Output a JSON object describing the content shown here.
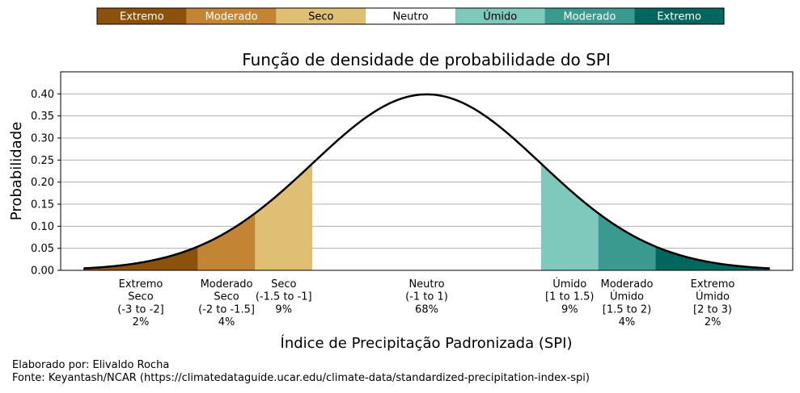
{
  "legend_bar": {
    "items": [
      {
        "label": "Extremo",
        "color": "#8c510a",
        "text_color": "#ffffff"
      },
      {
        "label": "Moderado",
        "color": "#c38533",
        "text_color": "#ffffff"
      },
      {
        "label": "Seco",
        "color": "#dfbf74",
        "text_color": "#000000"
      },
      {
        "label": "Neutro",
        "color": "#ffffff",
        "text_color": "#000000"
      },
      {
        "label": "Úmido",
        "color": "#7fc8bc",
        "text_color": "#000000"
      },
      {
        "label": "Moderado",
        "color": "#3a9a8f",
        "text_color": "#ffffff"
      },
      {
        "label": "Extremo",
        "color": "#01665e",
        "text_color": "#ffffff"
      }
    ]
  },
  "chart_data": {
    "type": "area",
    "title": "Função de densidade de probabilidade do SPI",
    "xlabel": "Índice de Precipitação Padronizada (SPI)",
    "ylabel": "Probabilidade",
    "xlim": [
      -3.2,
      3.2
    ],
    "ylim": [
      0,
      0.45
    ],
    "yticks": [
      "0.00",
      "0.05",
      "0.10",
      "0.15",
      "0.20",
      "0.25",
      "0.30",
      "0.35",
      "0.40"
    ],
    "grid": "horizontal",
    "curve": {
      "distribution": "normal",
      "mean": 0,
      "std": 1,
      "x_range": [
        -3,
        3
      ],
      "color": "#000000"
    },
    "regions": [
      {
        "x0": -3,
        "x1": -2,
        "color": "#8c510a"
      },
      {
        "x0": -2,
        "x1": -1.5,
        "color": "#c38533"
      },
      {
        "x0": -1.5,
        "x1": -1,
        "color": "#dfbf74"
      },
      {
        "x0": 1,
        "x1": 1.5,
        "color": "#7fc8bc"
      },
      {
        "x0": 1.5,
        "x1": 2,
        "color": "#3a9a8f"
      },
      {
        "x0": 2,
        "x1": 3,
        "color": "#01665e"
      }
    ],
    "category_labels": [
      {
        "x": -2.5,
        "lines": [
          "Extremo",
          "Seco",
          "(-3 to -2]",
          "2%"
        ]
      },
      {
        "x": -1.75,
        "lines": [
          "Moderado",
          "Seco",
          "(-2 to -1.5]",
          "4%"
        ]
      },
      {
        "x": -1.25,
        "lines": [
          "Seco",
          "(-1.5 to -1]",
          "9%"
        ]
      },
      {
        "x": 0,
        "lines": [
          "Neutro",
          "(-1 to 1)",
          "68%"
        ]
      },
      {
        "x": 1.25,
        "lines": [
          "Úmido",
          "[1 to 1.5)",
          "9%"
        ]
      },
      {
        "x": 1.75,
        "lines": [
          "Moderado",
          "Úmido",
          "[1.5 to 2)",
          "4%"
        ]
      },
      {
        "x": 2.5,
        "lines": [
          "Extremo",
          "Úmido",
          "[2 to 3)",
          "2%"
        ]
      }
    ]
  },
  "credits": {
    "author": "Elaborado por: Elivaldo Rocha",
    "source": "Fonte: Keyantash/NCAR (https://climatedataguide.ucar.edu/climate-data/standardized-precipitation-index-spi)"
  }
}
